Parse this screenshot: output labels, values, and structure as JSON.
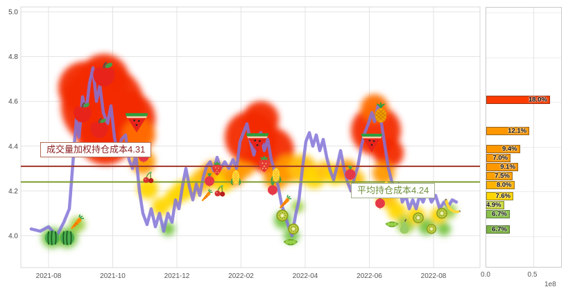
{
  "chart_data": {
    "type": "line",
    "description": "stock-holding-cost-distribution-chart",
    "y_axis": {
      "ticks": [
        "5.0",
        "4.8",
        "4.6",
        "4.4",
        "4.2",
        "4.0"
      ],
      "min": 3.95,
      "max": 5.0
    },
    "x_axis": {
      "ticks": [
        "2021-08",
        "2021-10",
        "2021-12",
        "2022-02",
        "2022-04",
        "2022-06",
        "2022-08"
      ]
    },
    "hlines": [
      {
        "label": "成交量加权持仓成本4.31",
        "value": 4.31,
        "color": "#a03528"
      },
      {
        "label": "平均持仓成本4.24",
        "value": 4.24,
        "color": "#7d9a2d"
      }
    ],
    "price_line": {
      "color": "#8374d8",
      "points": [
        [
          45,
          4.03
        ],
        [
          58,
          4.02
        ],
        [
          70,
          4.04
        ],
        [
          82,
          4.0
        ],
        [
          92,
          4.06
        ],
        [
          100,
          4.12
        ],
        [
          105,
          4.32
        ],
        [
          110,
          4.52
        ],
        [
          114,
          4.44
        ],
        [
          119,
          4.62
        ],
        [
          124,
          4.55
        ],
        [
          129,
          4.68
        ],
        [
          134,
          4.75
        ],
        [
          139,
          4.6
        ],
        [
          144,
          4.67
        ],
        [
          149,
          4.55
        ],
        [
          155,
          4.5
        ],
        [
          160,
          4.58
        ],
        [
          165,
          4.44
        ],
        [
          170,
          4.36
        ],
        [
          175,
          4.43
        ],
        [
          181,
          4.45
        ],
        [
          186,
          4.34
        ],
        [
          191,
          4.3
        ],
        [
          196,
          4.36
        ],
        [
          201,
          4.2
        ],
        [
          206,
          4.1
        ],
        [
          212,
          4.05
        ],
        [
          218,
          4.12
        ],
        [
          224,
          4.04
        ],
        [
          230,
          4.1
        ],
        [
          236,
          4.02
        ],
        [
          242,
          4.1
        ],
        [
          248,
          4.06
        ],
        [
          253,
          4.16
        ],
        [
          258,
          4.12
        ],
        [
          263,
          4.22
        ],
        [
          268,
          4.3
        ],
        [
          273,
          4.22
        ],
        [
          278,
          4.16
        ],
        [
          283,
          4.23
        ],
        [
          288,
          4.18
        ],
        [
          293,
          4.26
        ],
        [
          298,
          4.31
        ],
        [
          303,
          4.33
        ],
        [
          308,
          4.29
        ],
        [
          313,
          4.35
        ],
        [
          318,
          4.3
        ],
        [
          324,
          4.33
        ],
        [
          330,
          4.3
        ],
        [
          336,
          4.34
        ],
        [
          341,
          4.3
        ],
        [
          346,
          4.42
        ],
        [
          351,
          4.46
        ],
        [
          356,
          4.5
        ],
        [
          361,
          4.42
        ],
        [
          366,
          4.36
        ],
        [
          371,
          4.43
        ],
        [
          376,
          4.46
        ],
        [
          381,
          4.38
        ],
        [
          386,
          4.43
        ],
        [
          391,
          4.34
        ],
        [
          396,
          4.29
        ],
        [
          401,
          4.22
        ],
        [
          406,
          4.14
        ],
        [
          411,
          4.09
        ],
        [
          416,
          4.04
        ],
        [
          421,
          4.0
        ],
        [
          426,
          4.09
        ],
        [
          431,
          4.16
        ],
        [
          436,
          4.3
        ],
        [
          441,
          4.42
        ],
        [
          446,
          4.46
        ],
        [
          451,
          4.4
        ],
        [
          456,
          4.45
        ],
        [
          461,
          4.38
        ],
        [
          466,
          4.43
        ],
        [
          471,
          4.35
        ],
        [
          476,
          4.29
        ],
        [
          481,
          4.25
        ],
        [
          486,
          4.31
        ],
        [
          491,
          4.38
        ],
        [
          496,
          4.3
        ],
        [
          501,
          4.24
        ],
        [
          506,
          4.2
        ],
        [
          511,
          4.26
        ],
        [
          516,
          4.31
        ],
        [
          521,
          4.4
        ],
        [
          526,
          4.46
        ],
        [
          531,
          4.5
        ],
        [
          536,
          4.55
        ],
        [
          540,
          4.51
        ],
        [
          545,
          4.58
        ],
        [
          550,
          4.5
        ],
        [
          555,
          4.4
        ],
        [
          560,
          4.3
        ],
        [
          565,
          4.24
        ],
        [
          570,
          4.2
        ],
        [
          575,
          4.23
        ],
        [
          580,
          4.15
        ],
        [
          585,
          4.18
        ],
        [
          590,
          4.12
        ],
        [
          595,
          4.16
        ],
        [
          600,
          4.12
        ],
        [
          605,
          4.18
        ],
        [
          610,
          4.15
        ],
        [
          616,
          4.2
        ],
        [
          622,
          4.15
        ],
        [
          628,
          4.18
        ],
        [
          634,
          4.12
        ],
        [
          640,
          4.15
        ],
        [
          646,
          4.13
        ],
        [
          652,
          4.16
        ],
        [
          658,
          4.15
        ]
      ]
    },
    "blobs": [
      {
        "x": 75,
        "price": 3.99,
        "r": 15,
        "color": "#76c442"
      },
      {
        "x": 97,
        "price": 3.99,
        "r": 15,
        "color": "#76c442"
      },
      {
        "x": 112,
        "price": 4.05,
        "r": 11,
        "color": "#9ccc3f"
      },
      {
        "x": 148,
        "price": 4.58,
        "r": 60,
        "color": "#f32c00"
      },
      {
        "x": 122,
        "price": 4.66,
        "r": 38,
        "color": "#f32c00"
      },
      {
        "x": 150,
        "price": 4.7,
        "r": 36,
        "color": "#f32c00"
      },
      {
        "x": 182,
        "price": 4.52,
        "r": 42,
        "color": "#f32c00"
      },
      {
        "x": 152,
        "price": 4.44,
        "r": 40,
        "color": "#f32c00"
      },
      {
        "x": 200,
        "price": 4.45,
        "r": 24,
        "color": "#ff6d00"
      },
      {
        "x": 206,
        "price": 4.33,
        "r": 18,
        "color": "#ff9800"
      },
      {
        "x": 213,
        "price": 4.21,
        "r": 15,
        "color": "#ffd600"
      },
      {
        "x": 232,
        "price": 4.13,
        "r": 13,
        "color": "#ffd600"
      },
      {
        "x": 242,
        "price": 4.03,
        "r": 10,
        "color": "#76c442"
      },
      {
        "x": 250,
        "price": 4.17,
        "r": 13,
        "color": "#ffd600"
      },
      {
        "x": 263,
        "price": 4.2,
        "r": 15,
        "color": "#ffd600"
      },
      {
        "x": 278,
        "price": 4.22,
        "r": 14,
        "color": "#ffd600"
      },
      {
        "x": 293,
        "price": 4.25,
        "r": 17,
        "color": "#ffc107"
      },
      {
        "x": 308,
        "price": 4.28,
        "r": 18,
        "color": "#ff9800"
      },
      {
        "x": 322,
        "price": 4.24,
        "r": 15,
        "color": "#ffd600"
      },
      {
        "x": 338,
        "price": 4.27,
        "r": 16,
        "color": "#ff9800"
      },
      {
        "x": 352,
        "price": 4.31,
        "r": 16,
        "color": "#ff9800"
      },
      {
        "x": 362,
        "price": 4.44,
        "r": 38,
        "color": "#f32c00"
      },
      {
        "x": 376,
        "price": 4.52,
        "r": 26,
        "color": "#f32c00"
      },
      {
        "x": 390,
        "price": 4.38,
        "r": 34,
        "color": "#f32c00"
      },
      {
        "x": 398,
        "price": 4.26,
        "r": 18,
        "color": "#ff9800"
      },
      {
        "x": 416,
        "price": 4.3,
        "r": 20,
        "color": "#ff9800"
      },
      {
        "x": 436,
        "price": 4.3,
        "r": 20,
        "color": "#ffc107"
      },
      {
        "x": 453,
        "price": 4.26,
        "r": 16,
        "color": "#ffd600"
      },
      {
        "x": 469,
        "price": 4.29,
        "r": 14,
        "color": "#ffc107"
      },
      {
        "x": 408,
        "price": 4.07,
        "r": 13,
        "color": "#76c442"
      },
      {
        "x": 420,
        "price": 4.0,
        "r": 11,
        "color": "#76c442"
      },
      {
        "x": 429,
        "price": 4.13,
        "r": 9,
        "color": "#9ccc3f"
      },
      {
        "x": 483,
        "price": 4.27,
        "r": 14,
        "color": "#ffd600"
      },
      {
        "x": 500,
        "price": 4.29,
        "r": 16,
        "color": "#ff9800"
      },
      {
        "x": 513,
        "price": 4.25,
        "r": 13,
        "color": "#ffc107"
      },
      {
        "x": 542,
        "price": 4.47,
        "r": 36,
        "color": "#f32c00"
      },
      {
        "x": 540,
        "price": 4.57,
        "r": 20,
        "color": "#ff6d00"
      },
      {
        "x": 560,
        "price": 4.37,
        "r": 22,
        "color": "#f32c00"
      },
      {
        "x": 553,
        "price": 4.28,
        "r": 16,
        "color": "#ff9800"
      },
      {
        "x": 558,
        "price": 4.17,
        "r": 15,
        "color": "#ffc107"
      },
      {
        "x": 572,
        "price": 4.11,
        "r": 13,
        "color": "#ffd600"
      },
      {
        "x": 585,
        "price": 4.05,
        "r": 13,
        "color": "#9ccc3f"
      },
      {
        "x": 600,
        "price": 4.09,
        "r": 13,
        "color": "#ffd600"
      },
      {
        "x": 615,
        "price": 4.04,
        "r": 12,
        "color": "#76c442"
      },
      {
        "x": 632,
        "price": 4.09,
        "r": 12,
        "color": "#ffd600"
      },
      {
        "x": 647,
        "price": 4.11,
        "r": 11,
        "color": "#9ccc3f"
      },
      {
        "x": 640,
        "price": 4.03,
        "r": 10,
        "color": "#76c442"
      }
    ],
    "fruits": [
      {
        "type": "melon",
        "x": 75,
        "price": 3.99,
        "size": 26
      },
      {
        "type": "melon",
        "x": 97,
        "price": 3.99,
        "size": 26
      },
      {
        "type": "carrot",
        "x": 112,
        "price": 4.06,
        "size": 24
      },
      {
        "type": "apple",
        "x": 150,
        "price": 4.72,
        "size": 44
      },
      {
        "type": "apple",
        "x": 119,
        "price": 4.55,
        "size": 36
      },
      {
        "type": "apple",
        "x": 143,
        "price": 4.48,
        "size": 36
      },
      {
        "type": "watermelon",
        "x": 197,
        "price": 4.51,
        "size": 40
      },
      {
        "type": "radish",
        "x": 207,
        "price": 4.36,
        "size": 24
      },
      {
        "type": "cherry",
        "x": 214,
        "price": 4.26,
        "size": 20
      },
      {
        "type": "strawberry",
        "x": 313,
        "price": 4.3,
        "size": 26
      },
      {
        "type": "radish",
        "x": 302,
        "price": 4.25,
        "size": 22
      },
      {
        "type": "corn",
        "x": 340,
        "price": 4.26,
        "size": 26
      },
      {
        "type": "cherry",
        "x": 317,
        "price": 4.2,
        "size": 20
      },
      {
        "type": "carrot",
        "x": 299,
        "price": 4.18,
        "size": 20
      },
      {
        "type": "watermelon",
        "x": 371,
        "price": 4.42,
        "size": 40
      },
      {
        "type": "strawberry",
        "x": 381,
        "price": 4.32,
        "size": 30
      },
      {
        "type": "corn",
        "x": 398,
        "price": 4.27,
        "size": 26
      },
      {
        "type": "radish",
        "x": 393,
        "price": 4.21,
        "size": 22
      },
      {
        "type": "carrot",
        "x": 412,
        "price": 4.15,
        "size": 22
      },
      {
        "type": "kiwi",
        "x": 407,
        "price": 4.09,
        "size": 24
      },
      {
        "type": "kiwi",
        "x": 423,
        "price": 4.03,
        "size": 22
      },
      {
        "type": "peas",
        "x": 419,
        "price": 3.97,
        "size": 26
      },
      {
        "type": "radish",
        "x": 505,
        "price": 4.28,
        "size": 24
      },
      {
        "type": "cherry",
        "x": 513,
        "price": 4.21,
        "size": 20
      },
      {
        "type": "pineapple",
        "x": 549,
        "price": 4.55,
        "size": 32
      },
      {
        "type": "watermelon",
        "x": 536,
        "price": 4.42,
        "size": 38
      },
      {
        "type": "corn",
        "x": 557,
        "price": 4.21,
        "size": 26
      },
      {
        "type": "radish",
        "x": 548,
        "price": 4.15,
        "size": 22
      },
      {
        "type": "peas",
        "x": 565,
        "price": 4.05,
        "size": 24
      },
      {
        "type": "pear",
        "x": 583,
        "price": 4.04,
        "size": 24
      },
      {
        "type": "kiwi",
        "x": 603,
        "price": 4.08,
        "size": 22
      },
      {
        "type": "kiwi",
        "x": 622,
        "price": 4.03,
        "size": 20
      },
      {
        "type": "kiwi",
        "x": 637,
        "price": 4.1,
        "size": 22
      },
      {
        "type": "banana",
        "x": 652,
        "price": 4.13,
        "size": 30
      }
    ],
    "histogram": {
      "unit_label": "1e8",
      "x_ticks": [
        "0.0",
        "0.5"
      ],
      "axis_max": 0.8,
      "bars": [
        {
          "pct": "18.0%",
          "value": 0.68,
          "price": 4.61,
          "color": "#fb3b00"
        },
        {
          "pct": "12.1%",
          "value": 0.46,
          "price": 4.47,
          "color": "#ff9800"
        },
        {
          "pct": "9.4%",
          "value": 0.36,
          "price": 4.39,
          "color": "#ff9800"
        },
        {
          "pct": "7.0%",
          "value": 0.26,
          "price": 4.35,
          "color": "#ff9800"
        },
        {
          "pct": "9.1%",
          "value": 0.34,
          "price": 4.31,
          "color": "#ff9800"
        },
        {
          "pct": "7.5%",
          "value": 0.28,
          "price": 4.27,
          "color": "#ffa000"
        },
        {
          "pct": "8.0%",
          "value": 0.3,
          "price": 4.23,
          "color": "#ffb300"
        },
        {
          "pct": "7.6%",
          "value": 0.29,
          "price": 4.18,
          "color": "#ffd600"
        },
        {
          "pct": "4.9%",
          "value": 0.19,
          "price": 4.14,
          "color": "#cddc39"
        },
        {
          "pct": "6.7%",
          "value": 0.25,
          "price": 4.1,
          "color": "#8bc34a"
        },
        {
          "pct": "6.7%",
          "value": 0.25,
          "price": 4.03,
          "color": "#7cb342"
        }
      ]
    }
  }
}
